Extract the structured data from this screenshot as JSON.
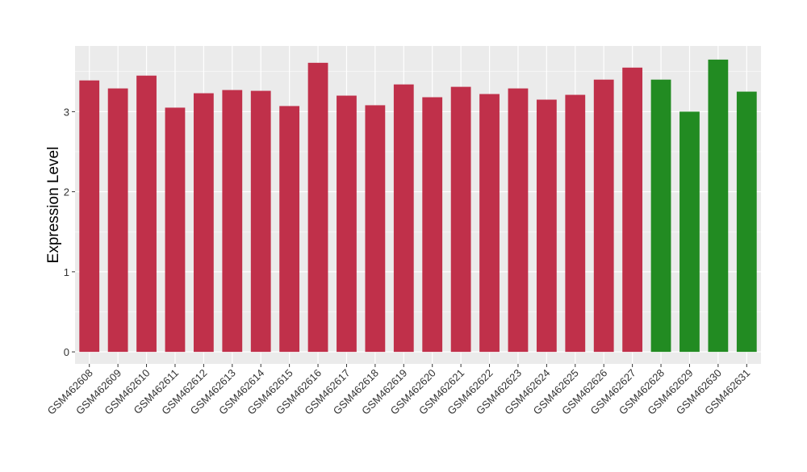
{
  "chart_data": {
    "type": "bar",
    "title": "",
    "xlabel": "",
    "ylabel": "Expression Level",
    "ylim": [
      -0.15,
      3.82
    ],
    "yticks": [
      0,
      1,
      2,
      3
    ],
    "grid": true,
    "legend": "none",
    "colors": {
      "red": "#C0304A",
      "green": "#228B22",
      "panel": "#EBEBEB",
      "gridline": "#FFFFFF"
    },
    "categories": [
      "GSM462608",
      "GSM462609",
      "GSM462610",
      "GSM462611",
      "GSM462612",
      "GSM462613",
      "GSM462614",
      "GSM462615",
      "GSM462616",
      "GSM462617",
      "GSM462618",
      "GSM462619",
      "GSM462620",
      "GSM462621",
      "GSM462622",
      "GSM462623",
      "GSM462624",
      "GSM462625",
      "GSM462626",
      "GSM462627",
      "GSM462628",
      "GSM462629",
      "GSM462630",
      "GSM462631"
    ],
    "values": [
      3.39,
      3.29,
      3.45,
      3.05,
      3.23,
      3.27,
      3.26,
      3.07,
      3.61,
      3.2,
      3.08,
      3.34,
      3.18,
      3.31,
      3.22,
      3.29,
      3.15,
      3.21,
      3.4,
      3.55,
      3.4,
      3.0,
      3.65,
      3.25
    ],
    "bar_colors": [
      "red",
      "red",
      "red",
      "red",
      "red",
      "red",
      "red",
      "red",
      "red",
      "red",
      "red",
      "red",
      "red",
      "red",
      "red",
      "red",
      "red",
      "red",
      "red",
      "red",
      "green",
      "green",
      "green",
      "green"
    ]
  }
}
